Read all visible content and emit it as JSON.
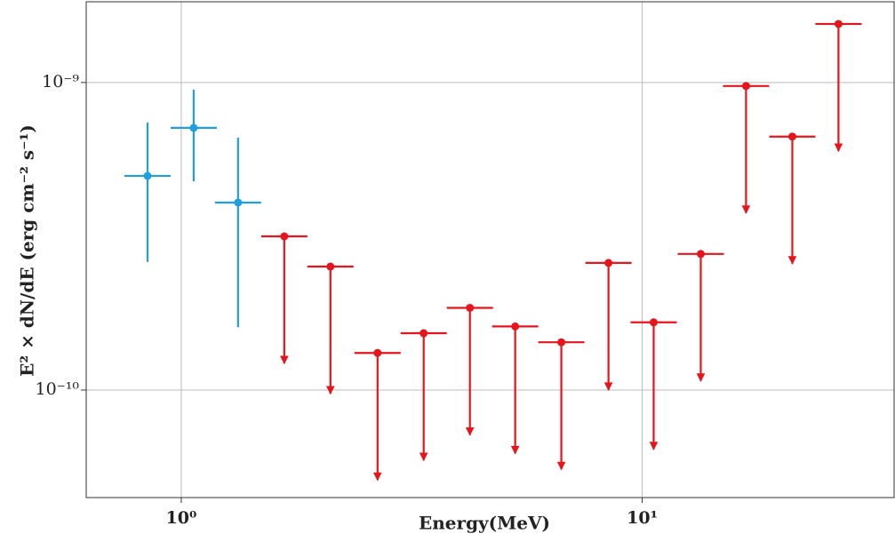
{
  "chart_data": {
    "type": "scatter",
    "xlabel": "Energy(MeV)",
    "ylabel": "E² × dN/dE (erg cm⁻² s⁻¹)",
    "xlog": true,
    "ylog": true,
    "grid": true,
    "xlim": [
      0.622,
      35.2
    ],
    "ylim": [
      4.47e-11,
      1.83e-09
    ],
    "xticks": [
      {
        "value": 1,
        "label": "10⁰"
      },
      {
        "value": 10,
        "label": "10¹"
      }
    ],
    "yticks": [
      {
        "value": 1e-10,
        "label": "10⁻¹⁰"
      },
      {
        "value": 1e-09,
        "label": "10⁻⁹"
      }
    ],
    "series": [
      {
        "color": "#1f9fe0",
        "x": [
          0.845,
          1.064,
          1.328
        ],
        "values": [
          4.97e-10,
          7.12e-10,
          4.07e-10
        ],
        "ylow": [
          2.61e-10,
          4.77e-10,
          1.6e-10
        ],
        "yhigh": [
          7.41e-10,
          9.48e-10,
          6.62e-10
        ]
      },
      {
        "color": "#e8141b",
        "upper_limit": true,
        "x": [
          1.673,
          2.107,
          2.666,
          3.357,
          4.229,
          5.302,
          6.677,
          8.45,
          10.59,
          13.4,
          16.8,
          21.17,
          26.66
        ],
        "values": [
          3.16e-10,
          2.52e-10,
          1.32e-10,
          1.53e-10,
          1.85e-10,
          1.61e-10,
          1.43e-10,
          2.59e-10,
          1.66e-10,
          2.77e-10,
          9.74e-10,
          6.67e-10,
          1.55e-09
        ]
      }
    ]
  }
}
